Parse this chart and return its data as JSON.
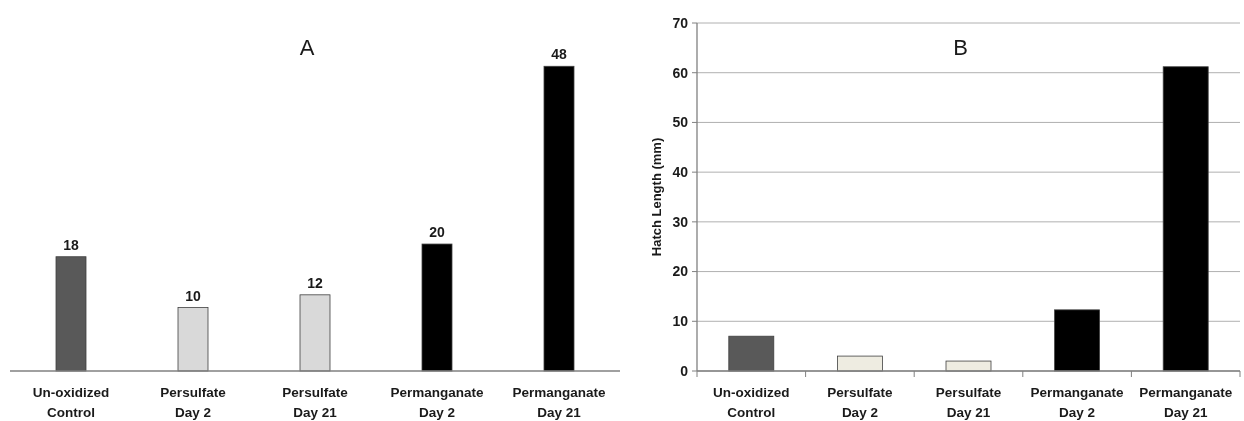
{
  "chart_data": [
    {
      "type": "bar",
      "title": "A",
      "categories": [
        "Un-oxidized Control",
        "Persulfate Day 2",
        "Persulfate Day 21",
        "Permanganate Day 2",
        "Permanganate Day 21"
      ],
      "values": [
        18,
        10,
        12,
        20,
        48
      ],
      "colors": [
        "#595959",
        "#d9d9d9",
        "#d9d9d9",
        "#000000",
        "#000000"
      ],
      "data_labels": true,
      "grid": false,
      "tick_labels": "x"
    },
    {
      "type": "bar",
      "title": "B",
      "ylabel": "Hatch Length (mm)",
      "categories": [
        "Un-oxidized Control",
        "Persulfate Day 2",
        "Persulfate Day 21",
        "Permanganate Day 2",
        "Permanganate Day 21"
      ],
      "values": [
        7,
        3,
        2,
        12.3,
        61.2
      ],
      "colors": [
        "#595959",
        "#eeece1",
        "#eeece1",
        "#000000",
        "#000000"
      ],
      "ylim": [
        0,
        70
      ],
      "yticks": [
        0,
        10,
        20,
        30,
        40,
        50,
        60,
        70
      ],
      "grid": "y"
    }
  ]
}
